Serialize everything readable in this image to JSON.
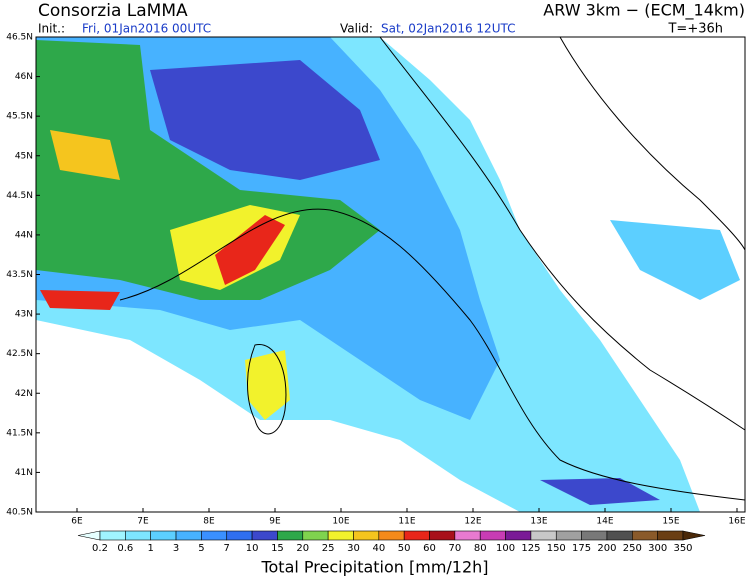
{
  "header": {
    "title": "Consorzia LaMMA",
    "init_label": "Init.:",
    "init_value": "Fri, 01Jan2016 00UTC",
    "valid_label": "Valid:",
    "valid_value": "Sat, 02Jan2016 12UTC",
    "model": "ARW 3km − (ECM_14km)",
    "lead": "T=+36h"
  },
  "lat_labels": [
    "46.5N",
    "46N",
    "45.5N",
    "45N",
    "44.5N",
    "44N",
    "43.5N",
    "43N",
    "42.5N",
    "42N",
    "41.5N",
    "41N",
    "40.5N"
  ],
  "lon_labels": [
    "6E",
    "7E",
    "8E",
    "9E",
    "10E",
    "11E",
    "12E",
    "13E",
    "14E",
    "15E",
    "16E"
  ],
  "colorbar": {
    "title": "Total Precipitation [mm/12h]",
    "labels": [
      "0.2",
      "0.6",
      "1",
      "3",
      "5",
      "7",
      "10",
      "15",
      "20",
      "25",
      "30",
      "40",
      "50",
      "60",
      "70",
      "80",
      "100",
      "125",
      "150",
      "175",
      "200",
      "250",
      "300",
      "350"
    ],
    "colors": [
      "#e6ffff",
      "#a0f5ff",
      "#7de6ff",
      "#5ccfff",
      "#47b2ff",
      "#3a90ff",
      "#2f6ff0",
      "#3c48cc",
      "#2ea84a",
      "#7fd34e",
      "#f2f22c",
      "#f5c51e",
      "#f58a1a",
      "#e8261a",
      "#a8101a",
      "#e87ad0",
      "#c83cb4",
      "#7a1a96",
      "#c8c8c8",
      "#a0a0a0",
      "#787878",
      "#505050",
      "#8a5a2a",
      "#6a3e14",
      "#4a2808"
    ]
  }
}
